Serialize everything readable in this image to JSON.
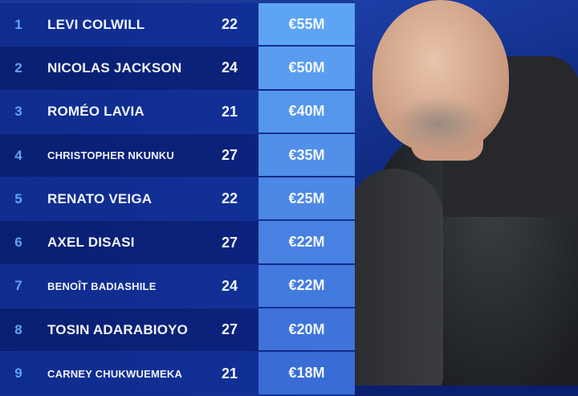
{
  "players": [
    {
      "rank": "1",
      "name": "LEVI COLWILL",
      "age": "22",
      "value": "€55M"
    },
    {
      "rank": "2",
      "name": "NICOLAS JACKSON",
      "age": "24",
      "value": "€50M"
    },
    {
      "rank": "3",
      "name": "ROMÉO LAVIA",
      "age": "21",
      "value": "€40M"
    },
    {
      "rank": "4",
      "name": "CHRISTOPHER NKUNKU",
      "age": "27",
      "value": "€35M"
    },
    {
      "rank": "5",
      "name": "RENATO VEIGA",
      "age": "22",
      "value": "€25M"
    },
    {
      "rank": "6",
      "name": "AXEL DISASI",
      "age": "27",
      "value": "€22M"
    },
    {
      "rank": "7",
      "name": "BENOÎT BADIASHILE",
      "age": "24",
      "value": "€22M"
    },
    {
      "rank": "8",
      "name": "TOSIN ADARABIOYO",
      "age": "27",
      "value": "€20M"
    },
    {
      "rank": "9",
      "name": "CARNEY CHUKWUEMEKA",
      "age": "21",
      "value": "€18M"
    }
  ],
  "colors": {
    "rank": "#5ea6f2",
    "value_top": "#5ea4f4",
    "value_bottom": "#3a6cd6",
    "row_light": "#0f2c8e",
    "row_dark": "#0a1f72"
  }
}
